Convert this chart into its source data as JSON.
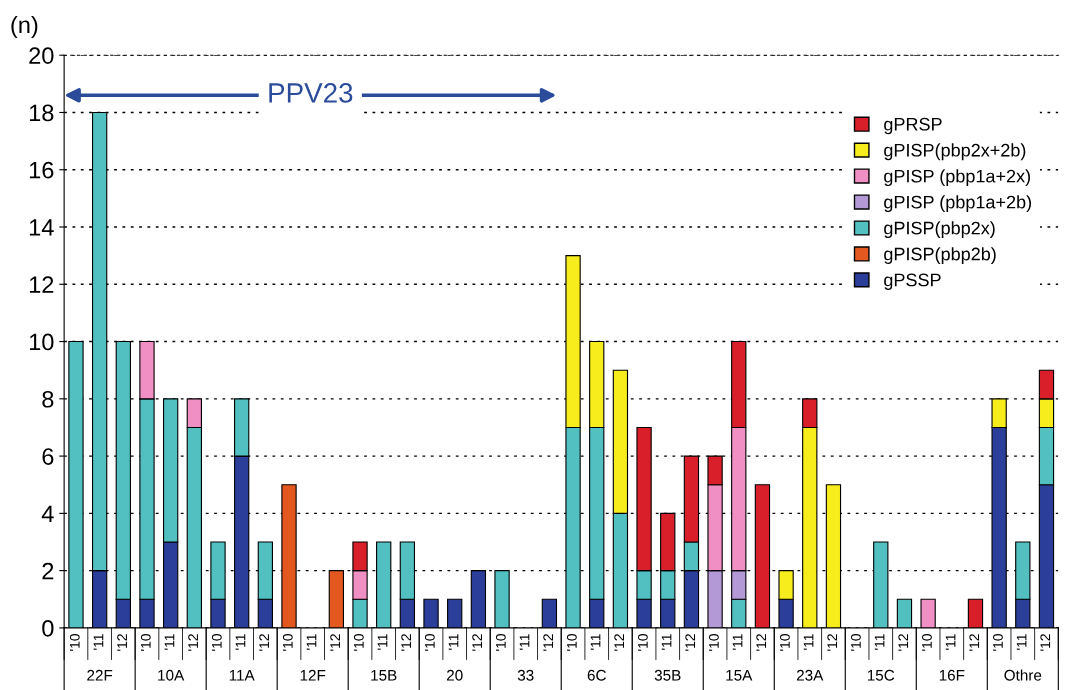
{
  "chart_data": {
    "type": "bar",
    "stacked": true,
    "ylabel": "(n)",
    "categories": [
      "'10",
      "'11",
      "'12",
      "'10",
      "'11",
      "'12",
      "'10",
      "'11",
      "'12",
      "'10",
      "'11",
      "'12",
      "'10",
      "'11",
      "'12",
      "'10",
      "'11",
      "'12",
      "'10",
      "'11",
      "'12",
      "'10",
      "'11",
      "'12",
      "'10",
      "'11",
      "'12",
      "'10",
      "'11",
      "'12",
      "'10",
      "'11",
      "'12",
      "'10",
      "'11",
      "'12",
      "'10",
      "'11",
      "'12",
      "'10",
      "'11",
      "'12"
    ],
    "series": [
      {
        "name": "gPSSP",
        "color": "#2b3f9a",
        "values": [
          null,
          2,
          1,
          1,
          3,
          null,
          1,
          6,
          1,
          null,
          null,
          null,
          null,
          null,
          1,
          1,
          1,
          2,
          null,
          null,
          1,
          null,
          1,
          null,
          1,
          1,
          2,
          null,
          null,
          null,
          1,
          null,
          null,
          null,
          null,
          null,
          null,
          null,
          null,
          7,
          1,
          5
        ]
      },
      {
        "name": "gPISP(pbp2b)",
        "color": "#e2581e",
        "values": [
          null,
          null,
          null,
          null,
          null,
          null,
          null,
          null,
          null,
          5,
          null,
          2,
          null,
          null,
          null,
          null,
          null,
          null,
          null,
          null,
          null,
          null,
          null,
          null,
          null,
          null,
          null,
          null,
          null,
          null,
          null,
          null,
          null,
          null,
          null,
          null,
          null,
          null,
          null,
          null,
          null,
          null
        ]
      },
      {
        "name": "gPISP(pbp2x)",
        "color": "#52c0c0",
        "values": [
          10,
          16,
          9,
          7,
          5,
          7,
          2,
          2,
          2,
          null,
          null,
          null,
          1,
          3,
          2,
          null,
          null,
          null,
          2,
          null,
          null,
          7,
          6,
          4,
          1,
          1,
          1,
          null,
          1,
          null,
          null,
          null,
          null,
          null,
          3,
          1,
          null,
          null,
          null,
          null,
          2,
          2
        ]
      },
      {
        "name": "gPISP (pbp1a+2b)",
        "color": "#b39ad6",
        "values": [
          null,
          null,
          null,
          null,
          null,
          null,
          null,
          null,
          null,
          null,
          null,
          null,
          null,
          null,
          null,
          null,
          null,
          null,
          null,
          null,
          null,
          null,
          null,
          null,
          null,
          null,
          null,
          2,
          1,
          null,
          null,
          null,
          null,
          null,
          null,
          null,
          null,
          null,
          null,
          null,
          null,
          null
        ]
      },
      {
        "name": "gPISP (pbp1a+2x)",
        "color": "#ef8fc4",
        "values": [
          null,
          null,
          null,
          2,
          null,
          1,
          null,
          null,
          null,
          null,
          null,
          null,
          1,
          null,
          null,
          null,
          null,
          null,
          null,
          null,
          null,
          null,
          null,
          null,
          null,
          null,
          null,
          3,
          5,
          null,
          null,
          null,
          null,
          null,
          null,
          null,
          1,
          null,
          null,
          null,
          null,
          null
        ]
      },
      {
        "name": "gPISP(pbp2x+2b)",
        "color": "#f7ec1c",
        "values": [
          null,
          null,
          null,
          null,
          null,
          null,
          null,
          null,
          null,
          null,
          null,
          null,
          null,
          null,
          null,
          null,
          null,
          null,
          null,
          null,
          null,
          6,
          3,
          5,
          null,
          null,
          null,
          null,
          null,
          null,
          1,
          7,
          5,
          null,
          null,
          null,
          null,
          null,
          null,
          1,
          null,
          1
        ]
      },
      {
        "name": "gPRSP",
        "color": "#d9202a",
        "values": [
          null,
          null,
          null,
          null,
          null,
          null,
          null,
          null,
          null,
          null,
          null,
          null,
          1,
          null,
          null,
          null,
          null,
          null,
          null,
          null,
          null,
          null,
          null,
          null,
          5,
          2,
          3,
          1,
          3,
          5,
          null,
          1,
          null,
          null,
          null,
          null,
          null,
          null,
          1,
          null,
          null,
          1
        ]
      }
    ],
    "ylim": [
      0,
      20
    ],
    "yticks": [
      0,
      2,
      4,
      6,
      8,
      10,
      12,
      14,
      16,
      18,
      20
    ],
    "grid": "y",
    "legend": "top right",
    "annotations": [
      "PPV23",
      "22F",
      "10A",
      "11A",
      "12F",
      "15B",
      "20",
      "33",
      "6C",
      "35B",
      "15A",
      "23A",
      "15C",
      "16F",
      "Othre"
    ]
  }
}
